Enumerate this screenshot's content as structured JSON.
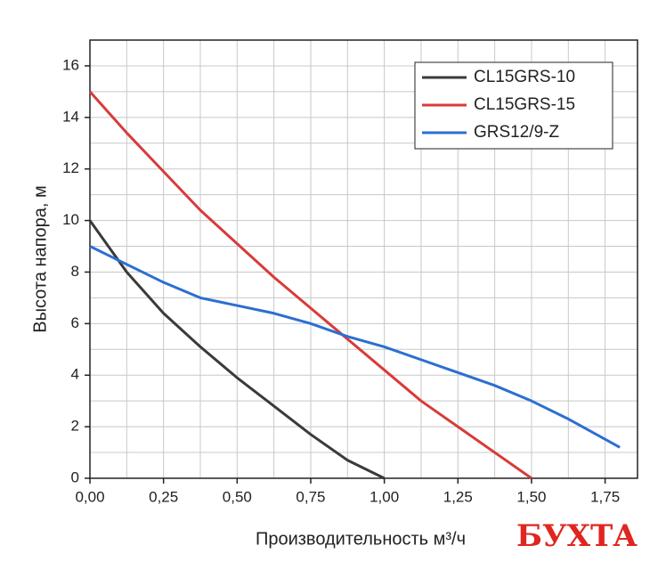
{
  "chart_data": {
    "type": "line",
    "x_label": "Производительность м³/ч",
    "y_label": "Высота напора, м",
    "watermark": "БУХТА",
    "xlim": [
      0,
      1.86
    ],
    "ylim": [
      0,
      17
    ],
    "xticks": [
      {
        "value": 0,
        "label": "0,00"
      },
      {
        "value": 0.25,
        "label": "0,25"
      },
      {
        "value": 0.5,
        "label": "0,50"
      },
      {
        "value": 0.75,
        "label": "0,75"
      },
      {
        "value": 1,
        "label": "1,00"
      },
      {
        "value": 1.25,
        "label": "1,25"
      },
      {
        "value": 1.5,
        "label": "1,50"
      },
      {
        "value": 1.75,
        "label": "1,75"
      }
    ],
    "yticks": [
      0,
      2,
      4,
      6,
      8,
      10,
      12,
      14,
      16
    ],
    "x_minor_ticks": [
      0.125,
      0.375,
      0.625,
      0.875,
      1.125,
      1.375,
      1.625
    ],
    "y_minor_ticks": [
      1,
      3,
      5,
      7,
      9,
      11,
      13,
      15
    ],
    "grid": true,
    "legend": "upper right",
    "series": [
      {
        "name": "CL15GRS-10",
        "color": "#3a3a3a",
        "x": [
          0,
          0.125,
          0.25,
          0.375,
          0.5,
          0.625,
          0.75,
          0.875,
          1.0
        ],
        "values": [
          10,
          8.0,
          6.4,
          5.1,
          3.9,
          2.8,
          1.7,
          0.7,
          0
        ]
      },
      {
        "name": "CL15GRS-15",
        "color": "#d93a3a",
        "x": [
          0,
          0.125,
          0.25,
          0.375,
          0.5,
          0.625,
          0.75,
          0.875,
          1.0,
          1.125,
          1.25,
          1.375,
          1.5
        ],
        "values": [
          15,
          13.4,
          11.9,
          10.4,
          9.1,
          7.8,
          6.6,
          5.4,
          4.2,
          3.0,
          2.0,
          1.0,
          0
        ]
      },
      {
        "name": "GRS12/9-Z",
        "color": "#2b6fd1",
        "x": [
          0,
          0.125,
          0.25,
          0.375,
          0.5,
          0.625,
          0.75,
          0.875,
          1.0,
          1.125,
          1.25,
          1.375,
          1.5,
          1.625,
          1.8
        ],
        "values": [
          9.0,
          8.3,
          7.6,
          7.0,
          6.7,
          6.4,
          6.0,
          5.5,
          5.1,
          4.6,
          4.1,
          3.6,
          3.0,
          2.3,
          1.2
        ]
      }
    ]
  }
}
